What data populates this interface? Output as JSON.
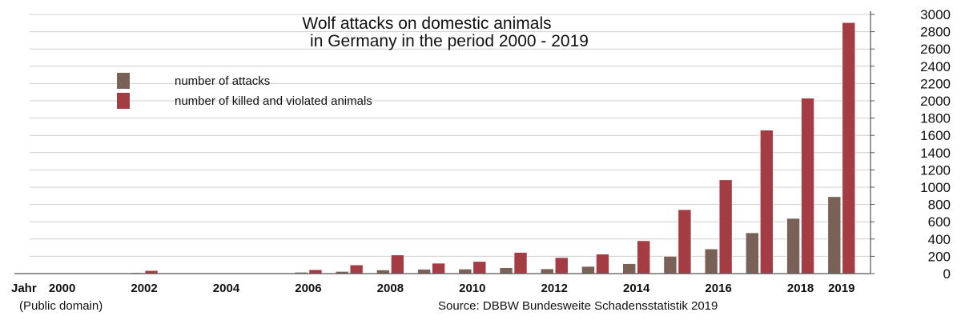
{
  "chart_data": {
    "type": "bar",
    "title_lines": [
      "Wolf attacks on domestic animals",
      "in Germany in the period 2000 - 2019"
    ],
    "x_axis_label": "Jahr",
    "years": [
      2000,
      2001,
      2002,
      2003,
      2004,
      2005,
      2006,
      2007,
      2008,
      2009,
      2010,
      2011,
      2012,
      2013,
      2014,
      2015,
      2016,
      2017,
      2018,
      2019
    ],
    "x_tick_labels": [
      "2000",
      "2002",
      "2004",
      "2006",
      "2008",
      "2010",
      "2012",
      "2014",
      "2016",
      "2018",
      "2019"
    ],
    "ylim": [
      0,
      3000
    ],
    "y_ticks": [
      0,
      200,
      400,
      600,
      800,
      1000,
      1200,
      1400,
      1600,
      1800,
      2000,
      2200,
      2400,
      2600,
      2800,
      3000
    ],
    "y_axis_position": "right",
    "grid": true,
    "legend_position": "top-left",
    "series": [
      {
        "name": "number of attacks",
        "color": "#7a6158",
        "values": [
          0,
          0,
          10,
          0,
          0,
          0,
          15,
          25,
          42,
          50,
          52,
          68,
          55,
          83,
          115,
          200,
          285,
          472,
          639,
          890
        ]
      },
      {
        "name": "number of killed and violated animals",
        "color": "#a33c43",
        "values": [
          0,
          0,
          35,
          0,
          0,
          0,
          45,
          100,
          215,
          120,
          140,
          245,
          185,
          225,
          380,
          740,
          1085,
          1660,
          2030,
          2905
        ]
      }
    ]
  },
  "notes": {
    "left": "(Public domain)",
    "right": "Source:  DBBW Bundesweite Schadensstatistik 2019"
  }
}
